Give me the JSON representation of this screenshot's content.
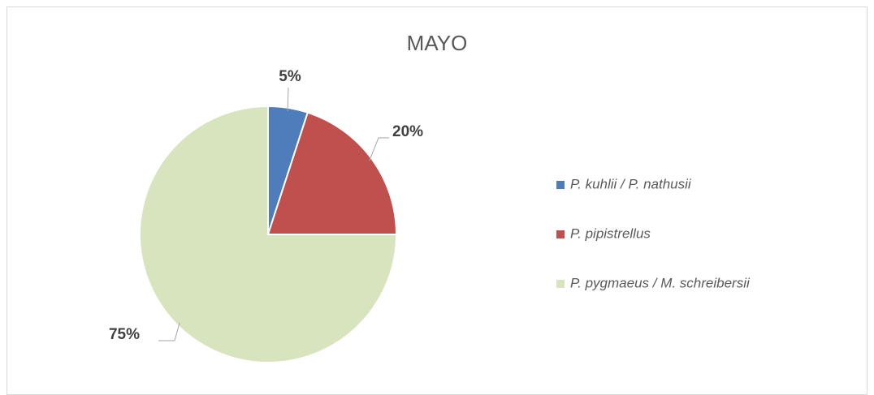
{
  "chart_data": {
    "type": "pie",
    "title": "MAYO",
    "categories": [
      "P. kuhlii / P. nathusii",
      "P. pipistrellus",
      "P. pygmaeus / M. schreibersii"
    ],
    "values": [
      5,
      20,
      75
    ],
    "value_labels": [
      "5%",
      "20%",
      "75%"
    ],
    "colors": [
      "#4f7dbc",
      "#c0504d",
      "#d7e4bd"
    ],
    "legend": "right"
  }
}
